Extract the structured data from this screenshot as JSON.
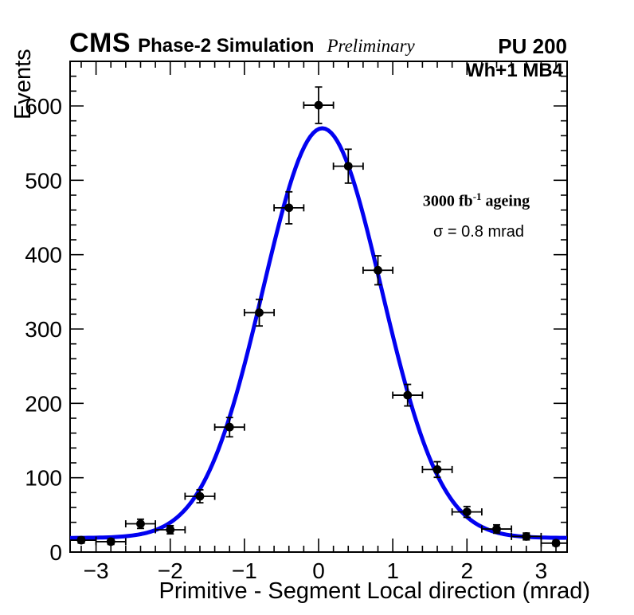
{
  "header": {
    "experiment": "CMS",
    "simulation_label": "Phase-2 Simulation",
    "preliminary_label": "Preliminary",
    "pileup_label": "PU 200"
  },
  "annotations": {
    "region_label": "Wh+1 MB4",
    "ageing_prefix": "3000 fb",
    "ageing_sup": "-1",
    "ageing_suffix": " ageing",
    "sigma_label": "σ = 0.8 mrad"
  },
  "chart_data": {
    "type": "scatter",
    "title": "",
    "xlabel": "Primitive - Segment Local direction (mrad)",
    "ylabel": "Events",
    "xlim": [
      -3.35,
      3.35
    ],
    "ylim": [
      0,
      660
    ],
    "grid": false,
    "x_major_ticks": [
      -3,
      -2,
      -1,
      0,
      1,
      2,
      3
    ],
    "x_tick_labels": [
      "−3",
      "−2",
      "−1",
      "0",
      "1",
      "2",
      "3"
    ],
    "x_minor_step": 0.2,
    "y_major_ticks": [
      0,
      100,
      200,
      300,
      400,
      500,
      600
    ],
    "y_tick_labels": [
      "0",
      "100",
      "200",
      "300",
      "400",
      "500",
      "600"
    ],
    "y_minor_step": 20,
    "marker": {
      "shape": "circle",
      "color": "#000000",
      "radius": 4.5
    },
    "series": [
      {
        "name": "simulation-data",
        "bin_width": 0.4,
        "x": [
          -3.2,
          -2.8,
          -2.4,
          -2.0,
          -1.6,
          -1.2,
          -0.8,
          -0.4,
          0.0,
          0.4,
          0.8,
          1.2,
          1.6,
          2.0,
          2.4,
          2.8,
          3.2
        ],
        "y": [
          16,
          14,
          38,
          30,
          75,
          168,
          322,
          463,
          601,
          519,
          379,
          211,
          111,
          54,
          31,
          21,
          12
        ],
        "xerr": 0.2,
        "yerr": [
          4.0,
          3.7,
          6.2,
          5.5,
          8.7,
          13.0,
          17.9,
          21.5,
          24.5,
          22.8,
          19.5,
          14.5,
          10.5,
          7.3,
          5.6,
          4.6,
          3.5
        ]
      }
    ],
    "fit": {
      "name": "gaussian-fit",
      "model": "constant + gaussian",
      "baseline": 19,
      "amplitude": 551,
      "mean": 0.05,
      "sigma": 0.8,
      "color": "#0202f0",
      "line_width": 5
    }
  }
}
